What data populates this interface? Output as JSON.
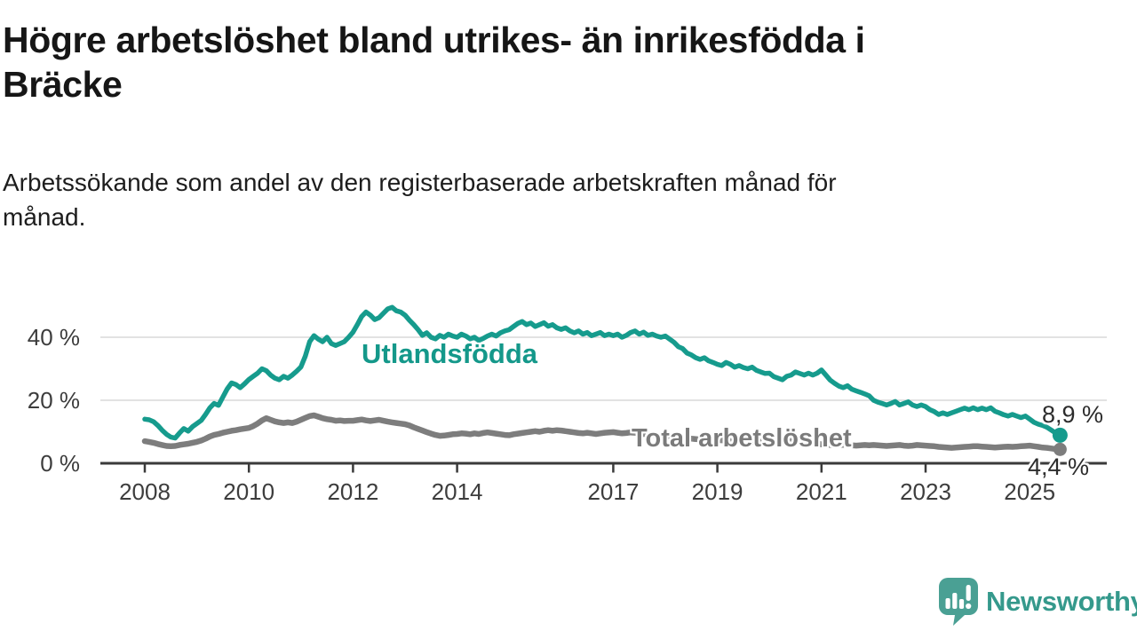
{
  "title": {
    "lines": [
      "Högre arbetslöshet bland utrikes- än inrikesfödda i",
      "Bräcke"
    ]
  },
  "subtitle": {
    "lines": [
      "Arbetssökande som andel av den registerbaserade arbetskraften månad för",
      "månad."
    ]
  },
  "chart_data": {
    "type": "line",
    "title": "Högre arbetslöshet bland utrikes- än inrikesfödda i Bräcke",
    "xlabel": "",
    "ylabel": "Arbetssökande som andel av den registerbaserade arbetskraften",
    "x_axis": {
      "start_year": 2008,
      "start_month": 1,
      "step_months": 1,
      "end_year": 2025,
      "end_month": 8,
      "tick_labels": [
        "2008",
        "2010",
        "2012",
        "2014",
        "2017",
        "2019",
        "2021",
        "2023",
        "2025"
      ],
      "tick_years": [
        2008,
        2010,
        2012,
        2014,
        2017,
        2019,
        2021,
        2023,
        2025
      ]
    },
    "y_axis": {
      "tick_labels": [
        "0 %",
        "20 %",
        "40 %"
      ],
      "tick_values": [
        0,
        20,
        40
      ],
      "ylim": [
        0,
        52
      ],
      "grid": true
    },
    "legend": "inline-labels",
    "series": [
      {
        "name": "Utlandsfödda",
        "color": "#169b8d",
        "end_label": "8,9 %",
        "end_value": 8.9,
        "values": [
          14,
          13.8,
          13.2,
          12,
          10.5,
          9.2,
          8.3,
          8,
          9.6,
          11,
          10.2,
          11.6,
          12.6,
          13.6,
          15.5,
          17.6,
          19,
          18.4,
          21,
          23.6,
          25.5,
          25,
          24,
          25.2,
          26.6,
          27.6,
          28.6,
          30,
          29.4,
          28,
          27,
          26.5,
          27.6,
          27,
          28,
          29.2,
          30.6,
          34,
          38.6,
          40.5,
          39.4,
          38.6,
          40,
          38,
          37.4,
          38,
          38.6,
          40,
          41.6,
          44,
          46.6,
          48,
          47,
          45.6,
          46.2,
          47.6,
          49,
          49.5,
          48.4,
          48,
          47,
          45.4,
          44,
          42.4,
          40.6,
          41.4,
          40,
          39.5,
          40.6,
          40,
          41,
          40.4,
          40,
          41,
          40.4,
          39.5,
          40,
          39,
          39.6,
          40.4,
          41,
          40.4,
          41.4,
          42,
          42.4,
          43.4,
          44.4,
          45,
          44,
          44.5,
          43.4,
          44,
          44.6,
          43.5,
          44,
          43,
          42.5,
          43,
          42,
          41.4,
          42,
          41,
          41.5,
          40.5,
          41,
          41.5,
          40.5,
          41,
          40.5,
          41,
          40,
          40.6,
          41.5,
          42,
          41,
          41.6,
          40.6,
          41,
          40.4,
          40,
          40.4,
          39.4,
          38.4,
          37,
          36.4,
          35,
          34.4,
          33.5,
          33,
          33.5,
          32.5,
          32,
          31.4,
          31,
          32,
          31.4,
          30.5,
          31,
          30.4,
          30,
          30.5,
          29.5,
          29,
          28.5,
          28.6,
          27.5,
          27,
          26.5,
          27.6,
          28,
          29,
          28.5,
          28,
          28.6,
          28,
          28.6,
          29.6,
          28,
          26.4,
          25.4,
          24.5,
          24,
          24.6,
          23.5,
          23,
          22.5,
          22,
          21.4,
          20,
          19.4,
          19,
          18.5,
          19,
          19.6,
          18.5,
          19,
          19.5,
          18.5,
          18,
          18.5,
          18,
          17,
          16.4,
          15.5,
          16,
          15.5,
          16,
          16.5,
          17,
          17.5,
          17,
          17.6,
          17,
          17.5,
          17,
          17.6,
          16.5,
          16,
          15.4,
          15,
          15.5,
          15,
          14.5,
          15,
          14,
          13,
          12.4,
          12,
          11.4,
          10.5,
          9.6,
          8.9
        ]
      },
      {
        "name": "Total arbetslöshet",
        "color": "#7d7d7d",
        "end_label": "4,4 %",
        "end_value": 4.4,
        "values": [
          7,
          6.8,
          6.5,
          6.1,
          5.8,
          5.5,
          5.4,
          5.5,
          5.8,
          6,
          6.2,
          6.5,
          6.8,
          7.2,
          7.8,
          8.5,
          9,
          9.3,
          9.7,
          10,
          10.3,
          10.5,
          10.8,
          11,
          11.2,
          11.8,
          12.6,
          13.6,
          14.3,
          13.8,
          13.3,
          13,
          12.8,
          13,
          12.8,
          13.2,
          13.8,
          14.4,
          15,
          15.2,
          14.8,
          14.3,
          14,
          13.8,
          13.5,
          13.6,
          13.4,
          13.5,
          13.5,
          13.7,
          13.9,
          13.6,
          13.4,
          13.6,
          13.8,
          13.5,
          13.2,
          13,
          12.8,
          12.6,
          12.4,
          12,
          11.4,
          10.9,
          10.4,
          9.9,
          9.4,
          9,
          8.7,
          8.8,
          9,
          9.2,
          9.3,
          9.5,
          9.4,
          9.2,
          9.5,
          9.3,
          9.6,
          9.8,
          9.6,
          9.4,
          9.2,
          9,
          8.9,
          9.2,
          9.4,
          9.6,
          9.8,
          10,
          10.2,
          10,
          10.3,
          10.5,
          10.3,
          10.5,
          10.4,
          10.2,
          10,
          9.8,
          9.6,
          9.5,
          9.7,
          9.5,
          9.3,
          9.5,
          9.7,
          9.8,
          9.9,
          9.7,
          9.5,
          9.6,
          9.8,
          9.7,
          9.5,
          9.3,
          9.2,
          9,
          8.8,
          8.7,
          8.8,
          8.6,
          8.4,
          8.2,
          8,
          7.9,
          7.8,
          7.7,
          7.6,
          7.5,
          7.4,
          7.3,
          7.4,
          7.3,
          7.2,
          7.1,
          7,
          7.1,
          7,
          6.9,
          6.8,
          6.9,
          6.8,
          6.7,
          6.8,
          6.9,
          7.2,
          7.5,
          7.4,
          7.3,
          7.2,
          7,
          6.8,
          6.6,
          6.4,
          6.3,
          6,
          5.9,
          5.8,
          5.7,
          5.8,
          5.9,
          5.8,
          5.7,
          5.6,
          5.7,
          5.8,
          5.7,
          5.8,
          5.7,
          5.6,
          5.5,
          5.6,
          5.7,
          5.8,
          5.6,
          5.5,
          5.6,
          5.8,
          5.7,
          5.6,
          5.5,
          5.4,
          5.2,
          5.1,
          5,
          4.9,
          5,
          5.1,
          5.2,
          5.3,
          5.4,
          5.4,
          5.3,
          5.2,
          5.1,
          5,
          5.1,
          5.2,
          5.3,
          5.2,
          5.3,
          5.4,
          5.5,
          5.6,
          5.4,
          5.2,
          5,
          4.9,
          4.7,
          4.5,
          4.4
        ]
      }
    ],
    "style": {
      "grid_color": "#d9d9d9",
      "axis_color": "#3a3a3a",
      "tick_text_color": "#3d3d3d"
    }
  },
  "branding": {
    "logo_text": "Newsworthy",
    "logo_text_color": "#35998c",
    "logo_icon_color": "#4aa094"
  }
}
